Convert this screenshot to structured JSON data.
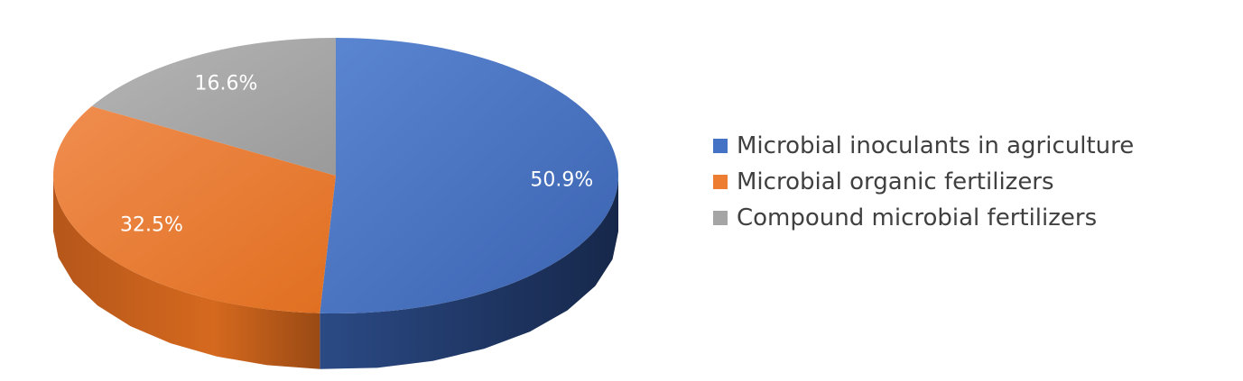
{
  "chart_data": {
    "type": "pie",
    "three_d": true,
    "title": "",
    "legend_position": "right",
    "slices": [
      {
        "name": "Microbial inoculants in agriculture",
        "value": 50.9,
        "label": "50.9%",
        "color": "#4472C4",
        "side_color": "#233A66"
      },
      {
        "name": "Microbial organic fertilizers",
        "value": 32.5,
        "label": "32.5%",
        "color": "#ED7D31",
        "side_color": "#8B4513"
      },
      {
        "name": "Compound microbial fertilizers",
        "value": 16.6,
        "label": "16.6%",
        "color": "#A5A5A5",
        "side_color": "#6B6B6B"
      }
    ]
  }
}
